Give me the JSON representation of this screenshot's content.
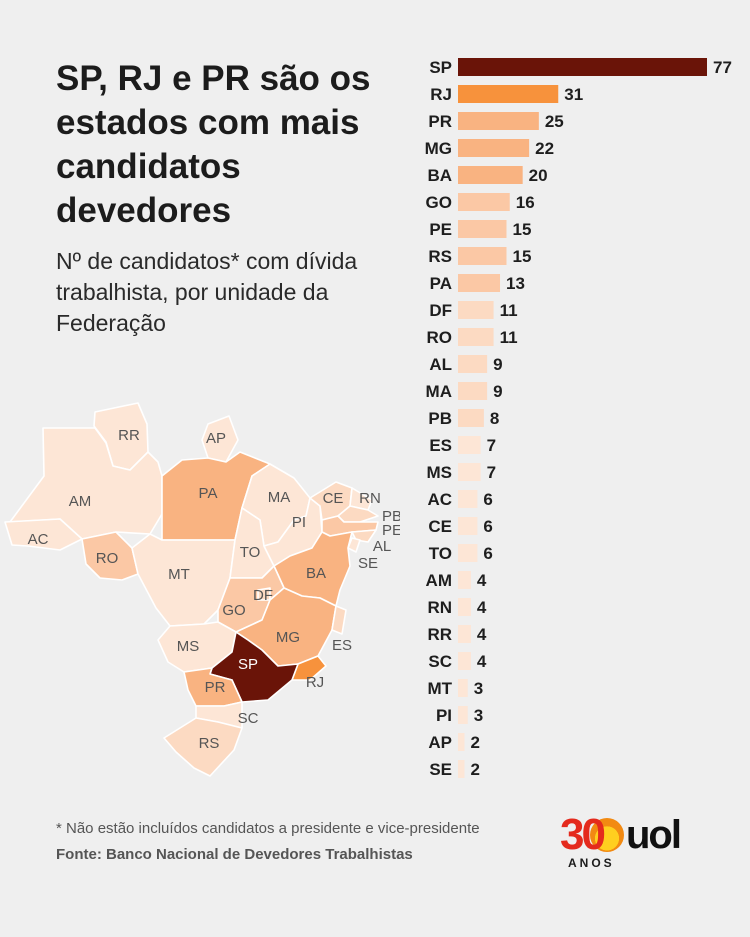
{
  "title": "SP, RJ e PR são os estados com mais candidatos devedores",
  "subtitle": "Nº de candidatos* com dívida trabalhista, por unidade da Federação",
  "footnote": "* Não estão incluídos candidatos a presidente e vice-presidente",
  "source": "Fonte: Banco Nacional de Devedores Trabalhistas",
  "logo": {
    "number": "30",
    "anos": "ANOS",
    "brand": "uol"
  },
  "colors": {
    "background": "#efefef",
    "max": "#6a1408",
    "high": "#f7923c",
    "mid": "#f9b381",
    "low": "#fbc8a5",
    "lower": "#fcdac2",
    "lowest": "#fde6d6"
  },
  "chart_data": {
    "type": "bar",
    "orientation": "horizontal",
    "categories": [
      "SP",
      "RJ",
      "PR",
      "MG",
      "BA",
      "GO",
      "PE",
      "RS",
      "PA",
      "DF",
      "RO",
      "AL",
      "MA",
      "PB",
      "ES",
      "MS",
      "AC",
      "CE",
      "TO",
      "AM",
      "RN",
      "RR",
      "SC",
      "MT",
      "PI",
      "AP",
      "SE"
    ],
    "values": [
      77,
      31,
      25,
      22,
      20,
      16,
      15,
      15,
      13,
      11,
      11,
      9,
      9,
      8,
      7,
      7,
      6,
      6,
      6,
      4,
      4,
      4,
      4,
      3,
      3,
      2,
      2
    ],
    "xlim": [
      0,
      77
    ]
  },
  "map": {
    "labels": [
      "RR",
      "AP",
      "AM",
      "PA",
      "MA",
      "CE",
      "RN",
      "PB",
      "PE",
      "AL",
      "SE",
      "PI",
      "AC",
      "RO",
      "TO",
      "MT",
      "BA",
      "DF",
      "GO",
      "MG",
      "ES",
      "MS",
      "SP",
      "RJ",
      "PR",
      "SC",
      "RS"
    ]
  }
}
